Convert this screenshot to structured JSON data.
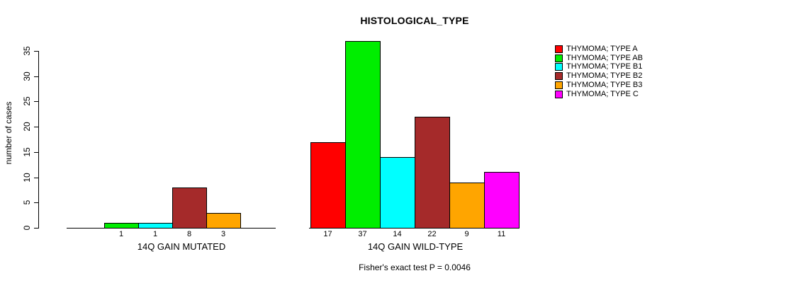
{
  "chart_data": {
    "type": "bar",
    "title": "HISTOLOGICAL_TYPE",
    "ylabel": "number of cases",
    "xlabel": "",
    "ylim": [
      0,
      35
    ],
    "yticks": [
      0,
      5,
      10,
      15,
      20,
      25,
      30,
      35
    ],
    "grid": false,
    "legend_position": "right",
    "series": [
      {
        "name": "THYMOMA; TYPE A",
        "color": "#FF0000"
      },
      {
        "name": "THYMOMA; TYPE AB",
        "color": "#00EE00"
      },
      {
        "name": "THYMOMA; TYPE B1",
        "color": "#00FFFF"
      },
      {
        "name": "THYMOMA; TYPE B2",
        "color": "#A52A2A"
      },
      {
        "name": "THYMOMA; TYPE B3",
        "color": "#FFA500"
      },
      {
        "name": "THYMOMA; TYPE C",
        "color": "#FF00FF"
      }
    ],
    "groups": [
      {
        "label": "14Q GAIN MUTATED",
        "values": [
          0,
          1,
          1,
          8,
          3,
          0
        ]
      },
      {
        "label": "14Q GAIN WILD-TYPE",
        "values": [
          17,
          37,
          14,
          22,
          9,
          11
        ]
      }
    ],
    "footnote": "Fisher's exact test P = 0.0046",
    "axis_color": "#000000",
    "background_color": "#FFFFFF"
  }
}
